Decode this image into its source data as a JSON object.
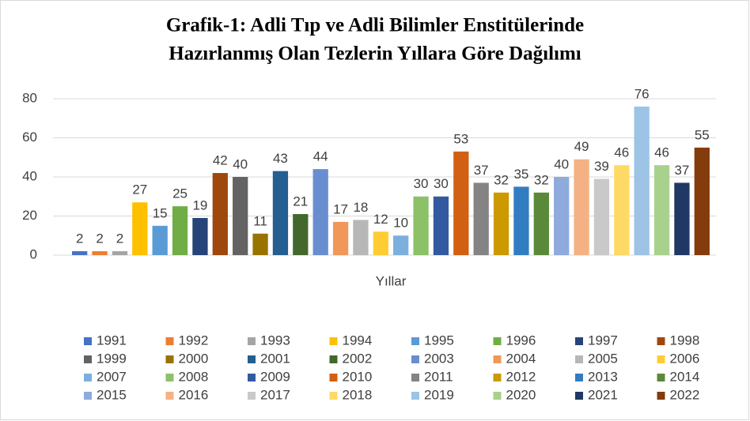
{
  "chart_data": {
    "type": "bar",
    "title": [
      "Grafik-1: Adli Tıp ve Adli Bilimler Enstitülerinde",
      "Hazırlanmış Olan Tezlerin Yıllara Göre Dağılımı"
    ],
    "x_label": "Yıllar",
    "ylim": [
      0,
      80
    ],
    "yticks": [
      0,
      20,
      40,
      60,
      80
    ],
    "grid": true,
    "legend": "bottom",
    "series": [
      {
        "name": "1991",
        "color": "#4472C4",
        "values": [
          2
        ]
      },
      {
        "name": "1992",
        "color": "#ED7D31",
        "values": [
          2
        ]
      },
      {
        "name": "1993",
        "color": "#A5A5A5",
        "values": [
          2
        ]
      },
      {
        "name": "1994",
        "color": "#FFC000",
        "values": [
          27
        ]
      },
      {
        "name": "1995",
        "color": "#5B9BD5",
        "values": [
          15
        ]
      },
      {
        "name": "1996",
        "color": "#70AD47",
        "values": [
          25
        ]
      },
      {
        "name": "1997",
        "color": "#264478",
        "values": [
          19
        ]
      },
      {
        "name": "1998",
        "color": "#9E480E",
        "values": [
          42
        ]
      },
      {
        "name": "1999",
        "color": "#636363",
        "values": [
          40
        ]
      },
      {
        "name": "2000",
        "color": "#997300",
        "values": [
          11
        ]
      },
      {
        "name": "2001",
        "color": "#255E91",
        "values": [
          43
        ]
      },
      {
        "name": "2002",
        "color": "#43682B",
        "values": [
          21
        ]
      },
      {
        "name": "2003",
        "color": "#698ED0",
        "values": [
          44
        ]
      },
      {
        "name": "2004",
        "color": "#F1975A",
        "values": [
          17
        ]
      },
      {
        "name": "2005",
        "color": "#B7B7B7",
        "values": [
          18
        ]
      },
      {
        "name": "2006",
        "color": "#FFCD33",
        "values": [
          12
        ]
      },
      {
        "name": "2007",
        "color": "#7CAFDD",
        "values": [
          10
        ]
      },
      {
        "name": "2008",
        "color": "#8CC168",
        "values": [
          30
        ]
      },
      {
        "name": "2009",
        "color": "#335AA1",
        "values": [
          30
        ]
      },
      {
        "name": "2010",
        "color": "#D26012",
        "values": [
          53
        ]
      },
      {
        "name": "2011",
        "color": "#848484",
        "values": [
          37
        ]
      },
      {
        "name": "2012",
        "color": "#CC9A00",
        "values": [
          32
        ]
      },
      {
        "name": "2013",
        "color": "#327DC2",
        "values": [
          35
        ]
      },
      {
        "name": "2014",
        "color": "#5A8A39",
        "values": [
          32
        ]
      },
      {
        "name": "2015",
        "color": "#8FAADC",
        "values": [
          40
        ]
      },
      {
        "name": "2016",
        "color": "#F4B183",
        "values": [
          49
        ]
      },
      {
        "name": "2017",
        "color": "#C9C9C9",
        "values": [
          39
        ]
      },
      {
        "name": "2018",
        "color": "#FFD966",
        "values": [
          46
        ]
      },
      {
        "name": "2019",
        "color": "#9DC3E6",
        "values": [
          76
        ]
      },
      {
        "name": "2020",
        "color": "#A9D18E",
        "values": [
          46
        ]
      },
      {
        "name": "2021",
        "color": "#203864",
        "values": [
          37
        ]
      },
      {
        "name": "2022",
        "color": "#843C0C",
        "values": [
          55
        ]
      }
    ]
  }
}
